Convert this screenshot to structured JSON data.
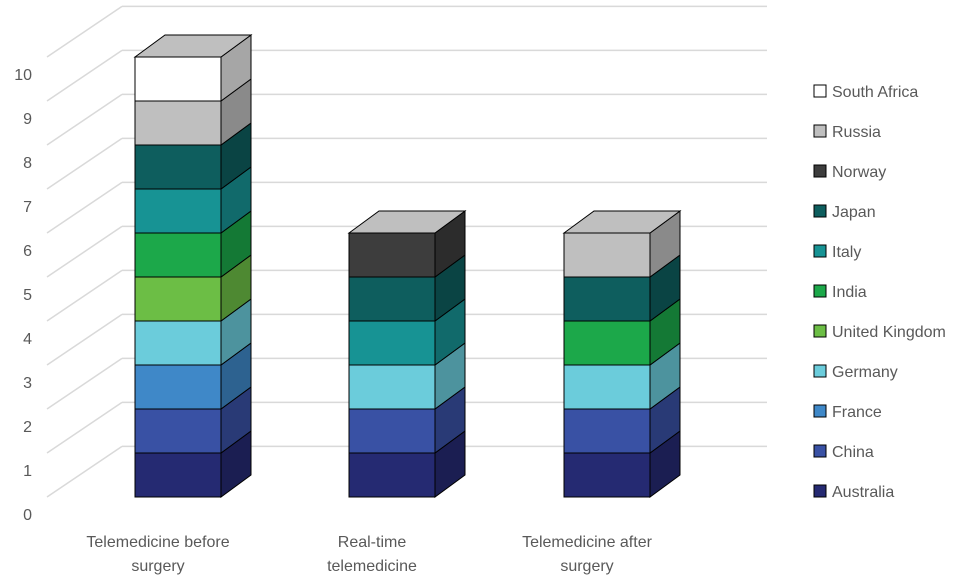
{
  "chart_data": {
    "type": "bar",
    "stacked": true,
    "three_d": true,
    "title": "",
    "xlabel": "",
    "ylabel": "",
    "ylim": [
      0,
      10
    ],
    "yticks": [
      0,
      1,
      2,
      3,
      4,
      5,
      6,
      7,
      8,
      9,
      10
    ],
    "grid": true,
    "legend_position": "right",
    "categories": [
      {
        "line1": "Telemedicine before",
        "line2": "surgery"
      },
      {
        "line1": "Real-time",
        "line2": "telemedicine"
      },
      {
        "line1": "Telemedicine after",
        "line2": "surgery"
      }
    ],
    "series": [
      {
        "name": "Australia",
        "color": "#252A72",
        "values": [
          1,
          1,
          1
        ]
      },
      {
        "name": "China",
        "color": "#3951A4",
        "values": [
          1,
          1,
          1
        ]
      },
      {
        "name": "France",
        "color": "#3F88C8",
        "values": [
          1,
          0,
          0
        ]
      },
      {
        "name": "Germany",
        "color": "#6BCCDB",
        "values": [
          1,
          1,
          1
        ]
      },
      {
        "name": "United Kingdom",
        "color": "#6CBE45",
        "values": [
          1,
          0,
          0
        ]
      },
      {
        "name": "India",
        "color": "#1CA84A",
        "values": [
          1,
          0,
          1
        ]
      },
      {
        "name": "Italy",
        "color": "#179394",
        "values": [
          1,
          1,
          0
        ]
      },
      {
        "name": "Japan",
        "color": "#0E5E5E",
        "values": [
          1,
          1,
          1
        ]
      },
      {
        "name": "Norway",
        "color": "#3D3D3D",
        "values": [
          0,
          1,
          0
        ]
      },
      {
        "name": "Russia",
        "color": "#BFBFBF",
        "values": [
          1,
          0,
          1
        ]
      },
      {
        "name": "South Africa",
        "color": "#FFFFFF",
        "values": [
          1,
          0,
          0
        ]
      }
    ]
  }
}
